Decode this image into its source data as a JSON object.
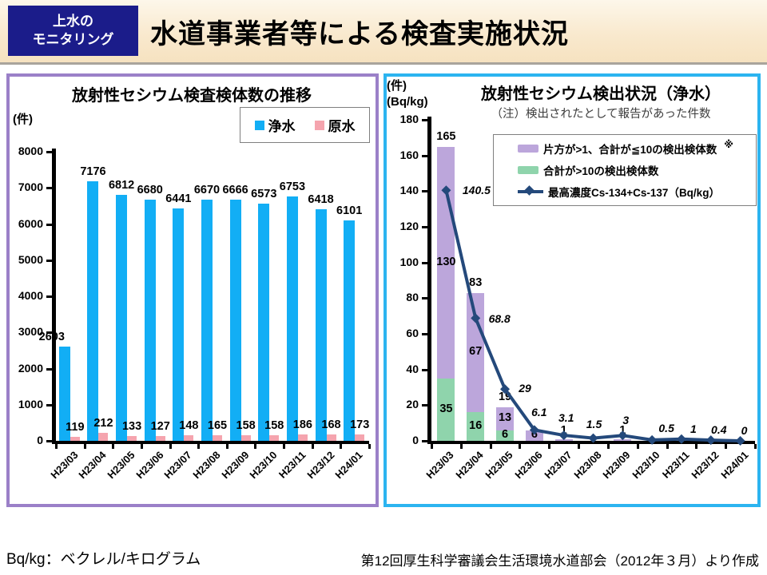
{
  "header": {
    "badge_line1": "上水の",
    "badge_line2": "モニタリング",
    "title": "水道事業者等による検査実施状況"
  },
  "footer": {
    "left": "Bq/kg：ベクレル/キログラム",
    "right": "第12回厚生科学審議会生活環境水道部会（2012年３月）より作成"
  },
  "colors": {
    "badge_bg": "#1B1C8A",
    "panel_left_border": "#9B80C8",
    "panel_right_border": "#2CB4F0",
    "blue": "#12AEF5",
    "pink": "#F5A4AE",
    "purple": "#BCA6DB",
    "green": "#8FD4AC",
    "line": "#24497B"
  },
  "chart_data": [
    {
      "type": "bar",
      "title": "放射性セシウム検査検体数の推移",
      "unit_label": "(件)",
      "categories": [
        "H23/03",
        "H23/04",
        "H23/05",
        "H23/06",
        "H23/07",
        "H23/08",
        "H23/09",
        "H23/10",
        "H23/11",
        "H23/12",
        "H24/01"
      ],
      "series": [
        {
          "name": "浄水",
          "color_key": "blue",
          "values": [
            2603,
            7176,
            6812,
            6680,
            6441,
            6670,
            6666,
            6573,
            6753,
            6418,
            6101
          ]
        },
        {
          "name": "原水",
          "color_key": "pink",
          "values": [
            119,
            212,
            133,
            127,
            148,
            165,
            158,
            158,
            186,
            168,
            173
          ]
        }
      ],
      "ylim": [
        0,
        8000
      ],
      "ystep": 1000,
      "grid": false,
      "legend_position": "top-right"
    },
    {
      "type": "stacked-bar-line",
      "title": "放射性セシウム検出状況（浄水）",
      "note": "（注）検出されたとして報告があった件数",
      "unit_labels": [
        "(件)",
        "(Bq/kg)"
      ],
      "categories": [
        "H23/03",
        "H23/04",
        "H23/05",
        "H23/06",
        "H23/07",
        "H23/08",
        "H23/09",
        "H23/10",
        "H23/11",
        "H23/12",
        "H24/01"
      ],
      "bar_series": [
        {
          "name": "合計が>10の検出検体数",
          "color_key": "green",
          "values": [
            35,
            16,
            6,
            0,
            0,
            0,
            0,
            0,
            0,
            0,
            0
          ]
        },
        {
          "name": "片方が>1、合計が≦10の検出検体数",
          "color_key": "purple",
          "legend_suffix": "※",
          "values": [
            130,
            67,
            13,
            6,
            1,
            0,
            1,
            0,
            0,
            0,
            0
          ]
        }
      ],
      "stack_totals": [
        165,
        83,
        19,
        6,
        1,
        0,
        1,
        0,
        0,
        0,
        0
      ],
      "line_series": {
        "name": "最高濃度Cs-134+Cs-137（Bq/kg）",
        "color_key": "line",
        "values": [
          140.5,
          68.8,
          29,
          6.1,
          3.1,
          1.5,
          3,
          0.5,
          1,
          0.4,
          0
        ]
      },
      "ylim": [
        0,
        180
      ],
      "ystep": 20,
      "grid": false,
      "legend_position": "top-right"
    }
  ]
}
